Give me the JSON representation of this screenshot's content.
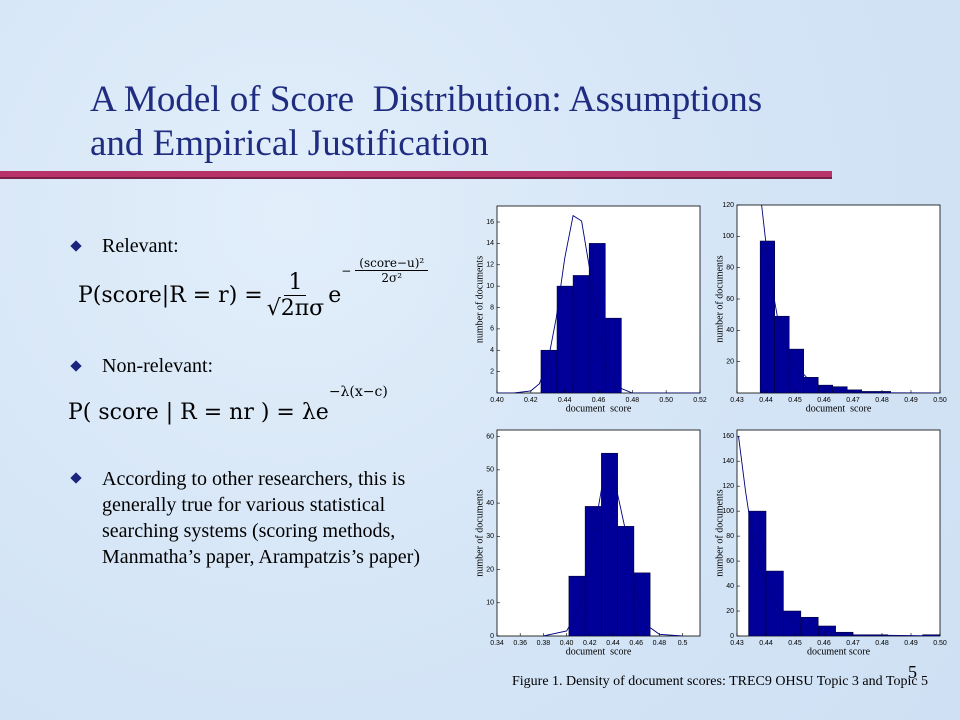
{
  "slide": {
    "title_lines": [
      "A Model of Score  Distribution: Assumptions",
      "and Empirical Justification"
    ],
    "bullets": [
      "Relevant:",
      "Non-relevant:",
      "According to other researchers, this is generally true for various statistical searching systems (scoring methods, Manmatha’s paper, Arampatzis’s paper)"
    ],
    "formula_relevant": {
      "lhs": "P(score|R = r) =",
      "numerator": "1",
      "denominator": "√2πσ",
      "base": "e",
      "exponent_sign": "−",
      "exponent_numerator": "(score−u)²",
      "exponent_denominator": "2σ²"
    },
    "formula_nonrelevant": {
      "lhs": "P( score | R = nr ) = λe",
      "exponent": "−λ(x−c)"
    },
    "caption": "Figure 1. Density of document scores: TREC9 OHSU Topic 3 and Topic 5",
    "page_number": "5"
  },
  "chart_data": [
    {
      "type": "histogram",
      "x_label": "document  score",
      "y_label": "number of documents",
      "bins": [
        0.426,
        0.4355,
        0.445,
        0.4545,
        0.464,
        0.4735
      ],
      "values": [
        4,
        10,
        11,
        14,
        7
      ],
      "color": "#000099",
      "curve_x": [
        0.4,
        0.41,
        0.42,
        0.425,
        0.43,
        0.435,
        0.44,
        0.445,
        0.45,
        0.455,
        0.46,
        0.465,
        0.47,
        0.48,
        0.52
      ],
      "curve_values": [
        0,
        0,
        0.2,
        0.85,
        2.9,
        7,
        12.6,
        16.6,
        16.1,
        11.4,
        6,
        2.3,
        0.65,
        0,
        0
      ],
      "curve_color": "#000080",
      "xlim": [
        0.4,
        0.52
      ],
      "ylim": [
        0,
        17.5
      ],
      "xticks": [
        {
          "value": 0.4,
          "label": "0.40"
        },
        0.42,
        0.44,
        0.46,
        0.48,
        {
          "value": 0.5,
          "label": "0.50"
        },
        0.52
      ],
      "yticks": [
        2,
        4,
        6,
        8,
        10,
        12,
        14,
        16
      ]
    },
    {
      "type": "histogram",
      "x_label": "document  score",
      "y_label": "number of documents",
      "bins": [
        0.438,
        0.443,
        0.448,
        0.453,
        0.458,
        0.463,
        0.468,
        0.473,
        0.478,
        0.483
      ],
      "values": [
        97,
        49,
        28,
        10,
        5,
        4,
        2,
        1,
        1
      ],
      "color": "#000099",
      "curve_x": [
        0.4385,
        0.441,
        0.444,
        0.447,
        0.45,
        0.455,
        0.46,
        0.47,
        0.48,
        0.5
      ],
      "curve_values": [
        120,
        79,
        48,
        29,
        18,
        8,
        3,
        0.5,
        0.1,
        0
      ],
      "curve_color": "#000080",
      "xlim": [
        0.43,
        0.5
      ],
      "ylim": [
        0,
        120
      ],
      "xticks": [
        0.43,
        0.44,
        0.45,
        0.46,
        0.47,
        0.48,
        0.49,
        {
          "value": 0.5,
          "label": "0.50"
        }
      ],
      "yticks": [
        20,
        40,
        60,
        80,
        100,
        120
      ]
    },
    {
      "type": "histogram",
      "x_label": "document  score",
      "y_label": "number of documents",
      "bins": [
        0.402,
        0.416,
        0.43,
        0.444,
        0.458,
        0.472
      ],
      "values": [
        18,
        39,
        55,
        33,
        19
      ],
      "color": "#000099",
      "curve_x": [
        0.38,
        0.4,
        0.41,
        0.42,
        0.43,
        0.44,
        0.45,
        0.46,
        0.47,
        0.48,
        0.5
      ],
      "curve_values": [
        0,
        1.5,
        7.6,
        24,
        44,
        49,
        33,
        13,
        3,
        0.5,
        0
      ],
      "curve_color": "#000080",
      "xlim": [
        0.34,
        0.515
      ],
      "ylim": [
        0,
        62
      ],
      "xticks": [
        0.34,
        0.36,
        0.38,
        {
          "value": 0.4,
          "label": "0.40"
        },
        0.42,
        0.44,
        0.46,
        0.48,
        0.5
      ],
      "yticks": [
        0,
        10,
        20,
        30,
        40,
        50,
        60
      ]
    },
    {
      "type": "histogram",
      "x_label": "document score",
      "y_label": "number of documents",
      "bins": [
        0.434,
        0.44,
        0.446,
        0.452,
        0.458,
        0.464,
        0.47,
        0.476,
        0.482,
        0.488,
        0.494,
        0.5
      ],
      "values": [
        100,
        52,
        20,
        15,
        8,
        3,
        1,
        1,
        0,
        0,
        1
      ],
      "color": "#000099",
      "curve_x": [
        0.4305,
        0.433,
        0.436,
        0.44,
        0.445,
        0.45,
        0.46,
        0.47,
        0.5
      ],
      "curve_values": [
        160,
        115,
        70,
        40,
        20,
        10,
        3,
        1,
        0
      ],
      "curve_color": "#000080",
      "xlim": [
        0.43,
        0.5
      ],
      "ylim": [
        0,
        165
      ],
      "xticks": [
        0.43,
        0.44,
        0.45,
        0.46,
        0.47,
        0.48,
        0.49,
        {
          "value": 0.5,
          "label": "0.50"
        }
      ],
      "yticks": [
        0,
        20,
        40,
        60,
        80,
        100,
        120,
        140,
        160
      ]
    }
  ]
}
